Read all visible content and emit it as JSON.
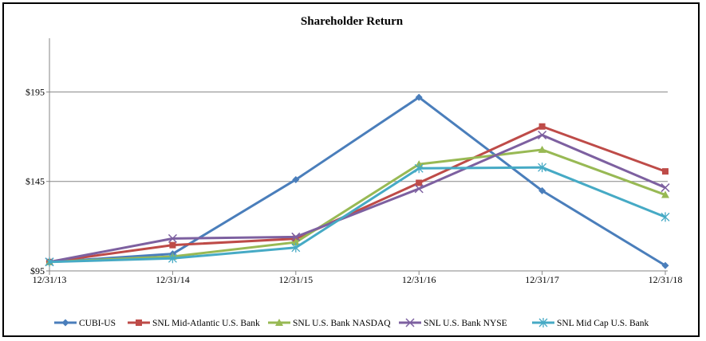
{
  "chart_data": {
    "type": "line",
    "title": "Shareholder Return",
    "xlabel": "",
    "ylabel": "",
    "categories": [
      "12/31/13",
      "12/31/14",
      "12/31/15",
      "12/31/16",
      "12/31/17",
      "12/31/18"
    ],
    "ylim": [
      95,
      225
    ],
    "yticks": [
      95,
      145,
      195
    ],
    "ytick_labels": [
      "$95",
      "$145",
      "$195"
    ],
    "grid": "horizontal",
    "legend_position": "bottom",
    "series": [
      {
        "name": "CUBI-US",
        "color": "#4A7EBB",
        "marker": "diamond",
        "values": [
          100,
          104.5,
          146,
          192,
          139.8,
          98
        ]
      },
      {
        "name": "SNL Mid-Atlantic U.S. Bank",
        "color": "#BE4B48",
        "marker": "square",
        "values": [
          100,
          109.4,
          113,
          144.2,
          175.7,
          150.6
        ]
      },
      {
        "name": "SNL U.S. Bank NASDAQ",
        "color": "#98B954",
        "marker": "triangle",
        "values": [
          100,
          103,
          111,
          154.6,
          162.7,
          137.5
        ]
      },
      {
        "name": "SNL U.S. Bank NYSE",
        "color": "#7D60A0",
        "marker": "x",
        "values": [
          100,
          113.1,
          114,
          140.9,
          170.9,
          141.5
        ]
      },
      {
        "name": "SNL Mid Cap U.S. Bank",
        "color": "#46AAC5",
        "marker": "star",
        "values": [
          100,
          102,
          108,
          152.3,
          152.8,
          125.1
        ]
      }
    ]
  }
}
